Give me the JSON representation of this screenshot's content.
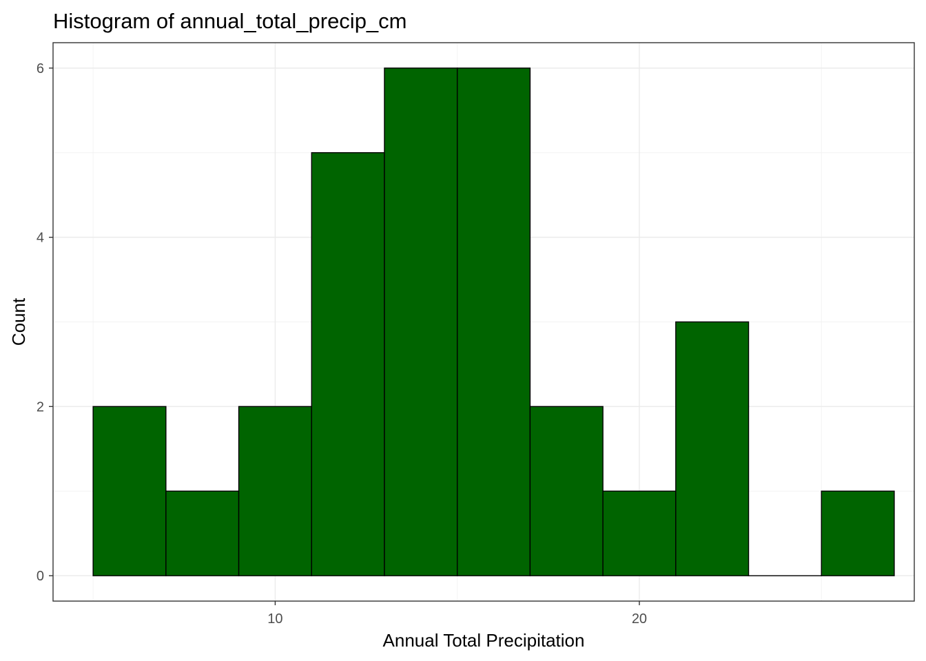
{
  "chart_data": {
    "type": "bar",
    "title": "Histogram of annual_total_precip_cm",
    "xlabel": "Annual Total Precipitation",
    "ylabel": "Count",
    "bin_edges": [
      5,
      7,
      9,
      11,
      13,
      15,
      17,
      19,
      21,
      23,
      25,
      27
    ],
    "values": [
      2,
      1,
      2,
      5,
      6,
      6,
      2,
      1,
      3,
      0,
      1
    ],
    "xlim": [
      3.9,
      27.55
    ],
    "ylim": [
      -0.3,
      6.3
    ],
    "x_ticks": [
      10,
      20
    ],
    "x_tick_labels": [
      "10",
      "20"
    ],
    "y_ticks": [
      0,
      2,
      4,
      6
    ],
    "y_tick_labels": [
      "0",
      "2",
      "4",
      "6"
    ],
    "bar_color": "#006400",
    "bar_outline": "#000000",
    "grid": true,
    "legend": "none"
  }
}
